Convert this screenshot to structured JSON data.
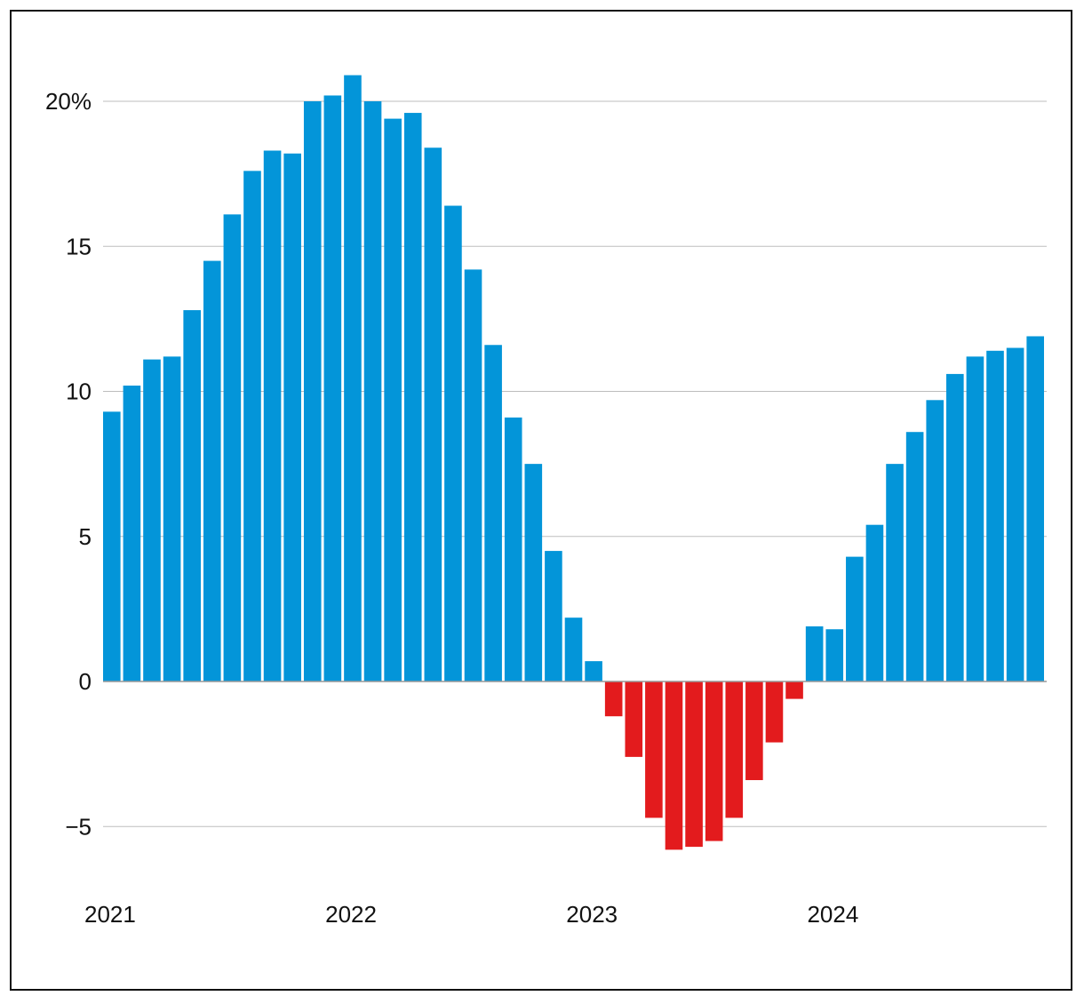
{
  "chart_data": {
    "type": "bar",
    "title": "",
    "xlabel": "",
    "ylabel": "",
    "y_ticks": [
      {
        "value": 20,
        "label": "20%"
      },
      {
        "value": 15,
        "label": "15"
      },
      {
        "value": 10,
        "label": "10"
      },
      {
        "value": 5,
        "label": "5"
      },
      {
        "value": 0,
        "label": "0"
      },
      {
        "value": -5,
        "label": "−5"
      }
    ],
    "x_ticks": [
      {
        "index": 0,
        "label": "2021"
      },
      {
        "index": 12,
        "label": "2022"
      },
      {
        "index": 24,
        "label": "2023"
      },
      {
        "index": 36,
        "label": "2024"
      }
    ],
    "ylim": [
      -7,
      21.8
    ],
    "grid": true,
    "colors": {
      "positive": "#0395d9",
      "negative": "#e31b1d"
    },
    "categories": [
      "2021-01",
      "2021-02",
      "2021-03",
      "2021-04",
      "2021-05",
      "2021-06",
      "2021-07",
      "2021-08",
      "2021-09",
      "2021-10",
      "2021-11",
      "2021-12",
      "2022-01",
      "2022-02",
      "2022-03",
      "2022-04",
      "2022-05",
      "2022-06",
      "2022-07",
      "2022-08",
      "2022-09",
      "2022-10",
      "2022-11",
      "2022-12",
      "2023-01",
      "2023-02",
      "2023-03",
      "2023-04",
      "2023-05",
      "2023-06",
      "2023-07",
      "2023-08",
      "2023-09",
      "2023-10",
      "2023-11",
      "2023-12",
      "2024-01",
      "2024-02",
      "2024-03",
      "2024-04",
      "2024-05",
      "2024-06",
      "2024-07",
      "2024-08",
      "2024-09",
      "2024-10",
      "2024-11"
    ],
    "values": [
      9.3,
      10.2,
      11.1,
      11.2,
      12.8,
      14.5,
      16.1,
      17.6,
      18.3,
      18.2,
      20.0,
      20.2,
      20.9,
      20.0,
      19.4,
      19.6,
      18.4,
      16.4,
      14.2,
      11.6,
      9.1,
      7.5,
      4.5,
      2.2,
      0.7,
      -1.2,
      -2.6,
      -4.7,
      -5.8,
      -5.7,
      -5.5,
      -4.7,
      -3.4,
      -2.1,
      -0.6,
      1.9,
      1.8,
      4.3,
      5.4,
      7.5,
      8.6,
      9.7,
      10.6,
      11.2,
      11.4,
      11.5,
      11.9
    ]
  }
}
